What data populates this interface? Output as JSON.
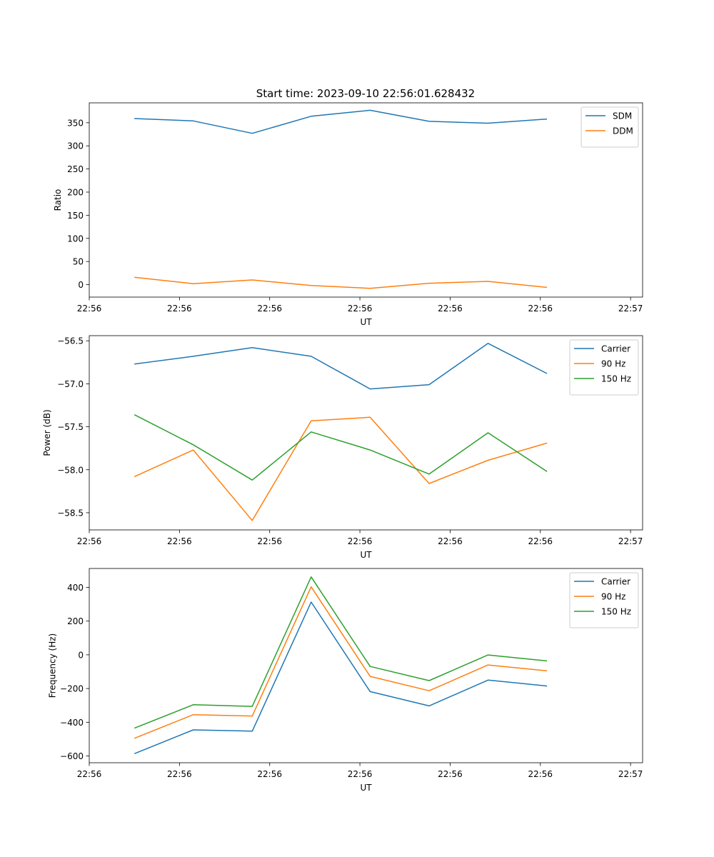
{
  "figure_title": "Start time: 2023-09-10 22:56:01.628432",
  "chart_data": [
    {
      "type": "line",
      "ylabel": "Ratio",
      "xlabel": "UT",
      "xlim": [
        0,
        9.2
      ],
      "ylim": [
        -27,
        393
      ],
      "x_ticks": [
        0,
        1.5,
        3,
        4.5,
        6,
        7.5,
        9
      ],
      "x_tick_labels": [
        "22:56",
        "22:56",
        "22:56",
        "22:56",
        "22:56",
        "22:56",
        "22:57"
      ],
      "y_ticks": [
        0,
        50,
        100,
        150,
        200,
        250,
        300,
        350
      ],
      "y_tick_labels": [
        "0",
        "50",
        "100",
        "150",
        "200",
        "250",
        "300",
        "350"
      ],
      "x": [
        0.75,
        1.73,
        2.71,
        3.69,
        4.67,
        5.65,
        6.63,
        7.61
      ],
      "series": [
        {
          "name": "SDM",
          "color": "#1f77b4",
          "values": [
            359,
            354,
            327,
            364,
            377,
            353,
            349,
            358
          ]
        },
        {
          "name": "DDM",
          "color": "#ff7f0e",
          "values": [
            16,
            2,
            10,
            -2,
            -8,
            3,
            7,
            -6
          ]
        }
      ]
    },
    {
      "type": "line",
      "ylabel": "Power (dB)",
      "xlabel": "UT",
      "xlim": [
        0,
        9.2
      ],
      "ylim": [
        -58.7,
        -56.44
      ],
      "x_ticks": [
        0,
        1.5,
        3,
        4.5,
        6,
        7.5,
        9
      ],
      "x_tick_labels": [
        "22:56",
        "22:56",
        "22:56",
        "22:56",
        "22:56",
        "22:56",
        "22:57"
      ],
      "y_ticks": [
        -58.5,
        -58.0,
        -57.5,
        -57.0,
        -56.5
      ],
      "y_tick_labels": [
        "−58.5",
        "−58.0",
        "−57.5",
        "−57.0",
        "−56.5"
      ],
      "x": [
        0.75,
        1.73,
        2.71,
        3.69,
        4.67,
        5.65,
        6.63,
        7.61
      ],
      "series": [
        {
          "name": "Carrier",
          "color": "#1f77b4",
          "values": [
            -56.77,
            -56.68,
            -56.58,
            -56.68,
            -57.06,
            -57.01,
            -56.53,
            -56.88
          ]
        },
        {
          "name": "90 Hz",
          "color": "#ff7f0e",
          "values": [
            -58.08,
            -57.77,
            -58.59,
            -57.43,
            -57.39,
            -58.16,
            -57.89,
            -57.69
          ]
        },
        {
          "name": "150 Hz",
          "color": "#2ca02c",
          "values": [
            -57.36,
            -57.71,
            -58.12,
            -57.56,
            -57.77,
            -58.05,
            -57.57,
            -58.02
          ]
        }
      ]
    },
    {
      "type": "line",
      "ylabel": "Frequency (Hz)",
      "xlabel": "UT",
      "xlim": [
        0,
        9.2
      ],
      "ylim": [
        -640,
        512
      ],
      "x_ticks": [
        0,
        1.5,
        3,
        4.5,
        6,
        7.5,
        9
      ],
      "x_tick_labels": [
        "22:56",
        "22:56",
        "22:56",
        "22:56",
        "22:56",
        "22:56",
        "22:57"
      ],
      "y_ticks": [
        -600,
        -400,
        -200,
        0,
        200,
        400
      ],
      "y_tick_labels": [
        "−600",
        "−400",
        "−200",
        "0",
        "200",
        "400"
      ],
      "x": [
        0.75,
        1.73,
        2.71,
        3.69,
        4.67,
        5.65,
        6.63,
        7.61
      ],
      "series": [
        {
          "name": "Carrier",
          "color": "#1f77b4",
          "values": [
            -586,
            -445,
            -453,
            313,
            -218,
            -303,
            -150,
            -185
          ]
        },
        {
          "name": "90 Hz",
          "color": "#ff7f0e",
          "values": [
            -495,
            -355,
            -363,
            403,
            -128,
            -213,
            -60,
            -95
          ]
        },
        {
          "name": "150 Hz",
          "color": "#2ca02c",
          "values": [
            -435,
            -296,
            -306,
            462,
            -69,
            -153,
            -1,
            -36
          ]
        }
      ]
    }
  ]
}
